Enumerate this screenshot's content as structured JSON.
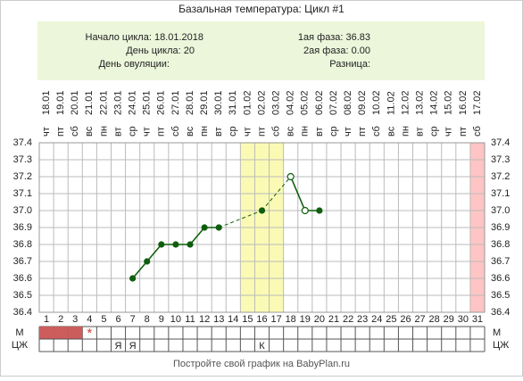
{
  "chart_data": {
    "type": "line",
    "title": "Базальная температура: Цикл #1",
    "info_left": [
      "Начало цикла: 18.01.2018",
      "День цикла: 20",
      "День овуляции:"
    ],
    "info_right": [
      "1ая фаза: 36.83",
      "2ая фаза: 0.00",
      "Разница:"
    ],
    "categories": [
      1,
      2,
      3,
      4,
      5,
      6,
      7,
      8,
      9,
      10,
      11,
      12,
      13,
      14,
      15,
      16,
      17,
      18,
      19,
      20,
      21,
      22,
      23,
      24,
      25,
      26,
      27,
      28,
      29,
      30,
      31
    ],
    "dates": [
      "18.01",
      "19.01",
      "20.01",
      "21.01",
      "22.01",
      "23.01",
      "24.01",
      "25.01",
      "26.01",
      "27.01",
      "28.01",
      "29.01",
      "30.01",
      "31.01",
      "01.02",
      "02.02",
      "03.02",
      "04.02",
      "05.02",
      "06.02",
      "07.02",
      "08.02",
      "09.02",
      "10.02",
      "11.02",
      "12.02",
      "13.02",
      "14.02",
      "15.02",
      "16.02",
      "17.02"
    ],
    "weekdays": [
      "чт",
      "пт",
      "сб",
      "вс",
      "пн",
      "вт",
      "ср",
      "чт",
      "пт",
      "сб",
      "вс",
      "пн",
      "вт",
      "ср",
      "чт",
      "пт",
      "сб",
      "вс",
      "пн",
      "вт",
      "ср",
      "чт",
      "пт",
      "сб",
      "вс",
      "пн",
      "вт",
      "ср",
      "чт",
      "пт",
      "сб"
    ],
    "series": [
      {
        "color": "#0e5e0e",
        "values": [
          null,
          null,
          null,
          null,
          null,
          null,
          36.6,
          36.7,
          36.8,
          36.8,
          36.8,
          36.9,
          36.9,
          null,
          null,
          37.0,
          null,
          37.2,
          37.0,
          37.0,
          null,
          null,
          null,
          null,
          null,
          null,
          null,
          null,
          null,
          null,
          null
        ]
      }
    ],
    "open_markers": [
      18,
      19
    ],
    "ylim": [
      36.4,
      37.4
    ],
    "yticks": [
      36.4,
      36.5,
      36.6,
      36.7,
      36.8,
      36.9,
      {
        "value": 37,
        "label": "37.0"
      },
      37.1,
      37.2,
      37.3,
      37.4
    ],
    "grid": true,
    "bands": [
      {
        "from": 15,
        "to": 17,
        "color": "#fafab4"
      },
      {
        "from": 31,
        "to": 31,
        "color": "#ffc4c4"
      }
    ],
    "m_row": {
      "label": "М",
      "filled": [
        1,
        2,
        3
      ],
      "fill": "#cd5c5c",
      "marks": [
        {
          "day": 4,
          "text": "*"
        }
      ]
    },
    "cj_row": {
      "label": "ЦЖ",
      "marks": [
        {
          "day": 6,
          "text": "Я"
        },
        {
          "day": 7,
          "text": "Я"
        },
        {
          "day": 16,
          "text": "К"
        }
      ]
    },
    "footer": "Постройте свой график на BabyPlan.ru"
  }
}
